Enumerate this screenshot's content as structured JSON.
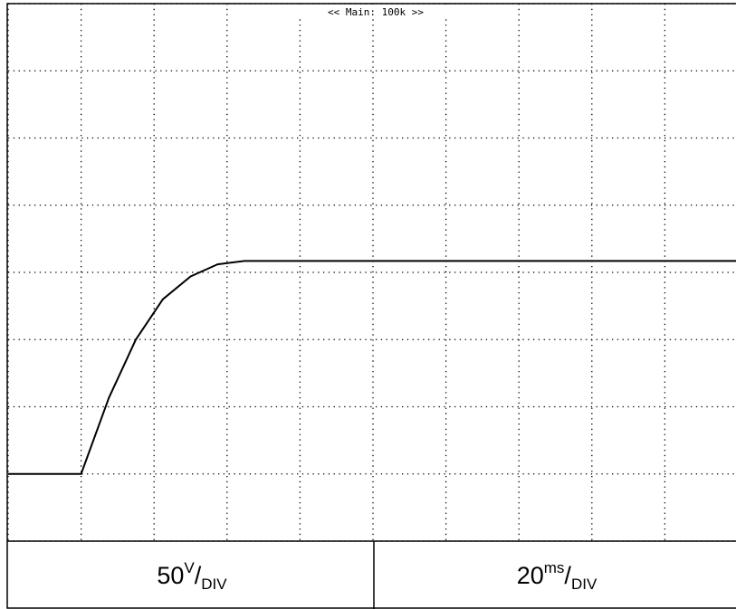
{
  "chart_data": {
    "type": "line",
    "title": "<< Main: 100k >>",
    "x": [
      0,
      1,
      1.38,
      1.75,
      2.12,
      2.5,
      2.87,
      3.24,
      10
    ],
    "values": [
      1.0,
      1.0,
      2.13,
      3.0,
      3.6,
      3.94,
      4.12,
      4.17,
      4.17
    ],
    "color": "#000000",
    "xlim": [
      0,
      10
    ],
    "ylim": [
      0,
      8
    ],
    "xticks": [
      0,
      1,
      2,
      3,
      4,
      5,
      6,
      7,
      8,
      9,
      10
    ],
    "yticks": [
      0,
      1,
      2,
      3,
      4,
      5,
      6,
      7,
      8
    ],
    "grid": true,
    "vertical_scale": {
      "value": 50,
      "unit": "V",
      "per": "DIV"
    },
    "horizontal_scale": {
      "value": 20,
      "unit": "ms",
      "per": "DIV"
    }
  }
}
